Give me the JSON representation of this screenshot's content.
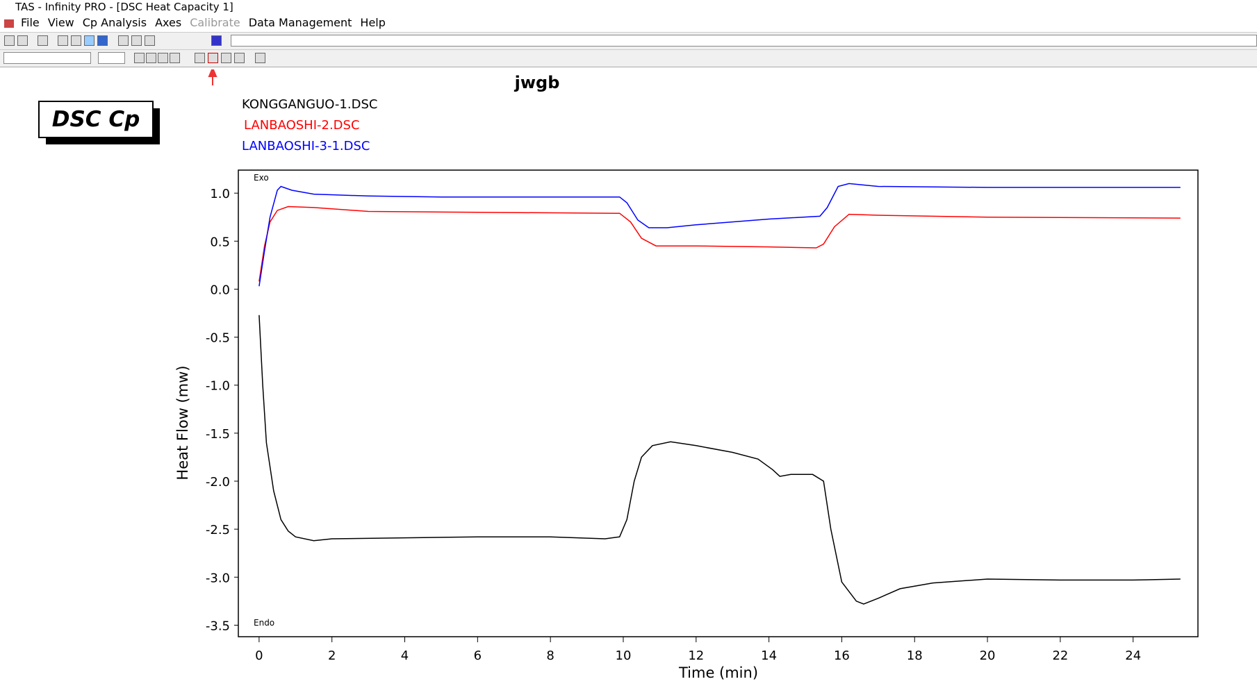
{
  "window": {
    "title": "TAS - Infinity PRO - [DSC Heat Capacity 1]"
  },
  "menu": [
    {
      "label": "File",
      "enabled": true
    },
    {
      "label": "View",
      "enabled": true
    },
    {
      "label": "Cp Analysis",
      "enabled": true
    },
    {
      "label": "Axes",
      "enabled": true
    },
    {
      "label": "Calibrate",
      "enabled": false
    },
    {
      "label": "Data Management",
      "enabled": true
    },
    {
      "label": "Help",
      "enabled": true
    }
  ],
  "chart_data": {
    "type": "line",
    "title": "jwgb",
    "label_box": "DSC Cp",
    "x_label": "Time (min)",
    "y_label": "Heat Flow (mw)",
    "annotations": [
      "Exo",
      "Endo"
    ],
    "xlim": [
      -0.57,
      25.78
    ],
    "ylim": [
      -3.62,
      1.24
    ],
    "xticks": [
      0,
      2,
      4,
      6,
      8,
      10,
      12,
      14,
      16,
      18,
      20,
      22,
      24
    ],
    "yticks": [
      {
        "value": 1,
        "label": "1.0"
      },
      0.5,
      {
        "value": 0,
        "label": "0.0"
      },
      -0.5,
      {
        "value": -1,
        "label": "-1.0"
      },
      -1.5,
      {
        "value": -2,
        "label": "-2.0"
      },
      -2.5,
      {
        "value": -3,
        "label": "-3.0"
      },
      -3.5
    ],
    "series": [
      {
        "name": "KONGGANGUO-1.DSC",
        "color": "#000000",
        "x": [
          0,
          0.1,
          0.2,
          0.4,
          0.6,
          0.8,
          1,
          1.5,
          2,
          4,
          6,
          8,
          9.5,
          9.9,
          10.1,
          10.3,
          10.5,
          10.8,
          11.3,
          12,
          13,
          13.7,
          14.1,
          14.3,
          14.6,
          15.2,
          15.5,
          15.7,
          16,
          16.4,
          16.6,
          17,
          17.6,
          18.5,
          20,
          22,
          24,
          25.3
        ],
        "values": [
          -0.27,
          -1.0,
          -1.6,
          -2.1,
          -2.4,
          -2.52,
          -2.58,
          -2.62,
          -2.6,
          -2.59,
          -2.58,
          -2.58,
          -2.6,
          -2.58,
          -2.4,
          -2.0,
          -1.75,
          -1.63,
          -1.59,
          -1.63,
          -1.7,
          -1.77,
          -1.88,
          -1.95,
          -1.93,
          -1.93,
          -2.0,
          -2.5,
          -3.05,
          -3.25,
          -3.28,
          -3.22,
          -3.12,
          -3.06,
          -3.02,
          -3.03,
          -3.03,
          -3.02
        ]
      },
      {
        "name": "LANBAOSHI-2.DSC",
        "color": "#ff0000",
        "x": [
          0,
          0.15,
          0.3,
          0.5,
          0.8,
          1.5,
          3,
          6,
          9.9,
          10.2,
          10.5,
          10.9,
          12,
          14,
          15.3,
          15.5,
          15.8,
          16.2,
          17,
          20,
          25.3
        ],
        "values": [
          0.08,
          0.45,
          0.7,
          0.82,
          0.86,
          0.85,
          0.81,
          0.8,
          0.79,
          0.7,
          0.53,
          0.45,
          0.45,
          0.44,
          0.43,
          0.47,
          0.65,
          0.78,
          0.77,
          0.75,
          0.74
        ]
      },
      {
        "name": "LANBAOSHI-3-1.DSC",
        "color": "#0000ff",
        "x": [
          0,
          0.15,
          0.3,
          0.5,
          0.6,
          0.9,
          1.5,
          3,
          5,
          8,
          9.9,
          10.1,
          10.4,
          10.7,
          11.2,
          12,
          14,
          15.4,
          15.6,
          15.9,
          16.2,
          17,
          20,
          25.3
        ],
        "values": [
          0.03,
          0.4,
          0.75,
          1.03,
          1.07,
          1.03,
          0.99,
          0.97,
          0.96,
          0.96,
          0.96,
          0.9,
          0.72,
          0.64,
          0.64,
          0.67,
          0.73,
          0.76,
          0.85,
          1.07,
          1.1,
          1.07,
          1.06,
          1.06
        ]
      }
    ]
  }
}
